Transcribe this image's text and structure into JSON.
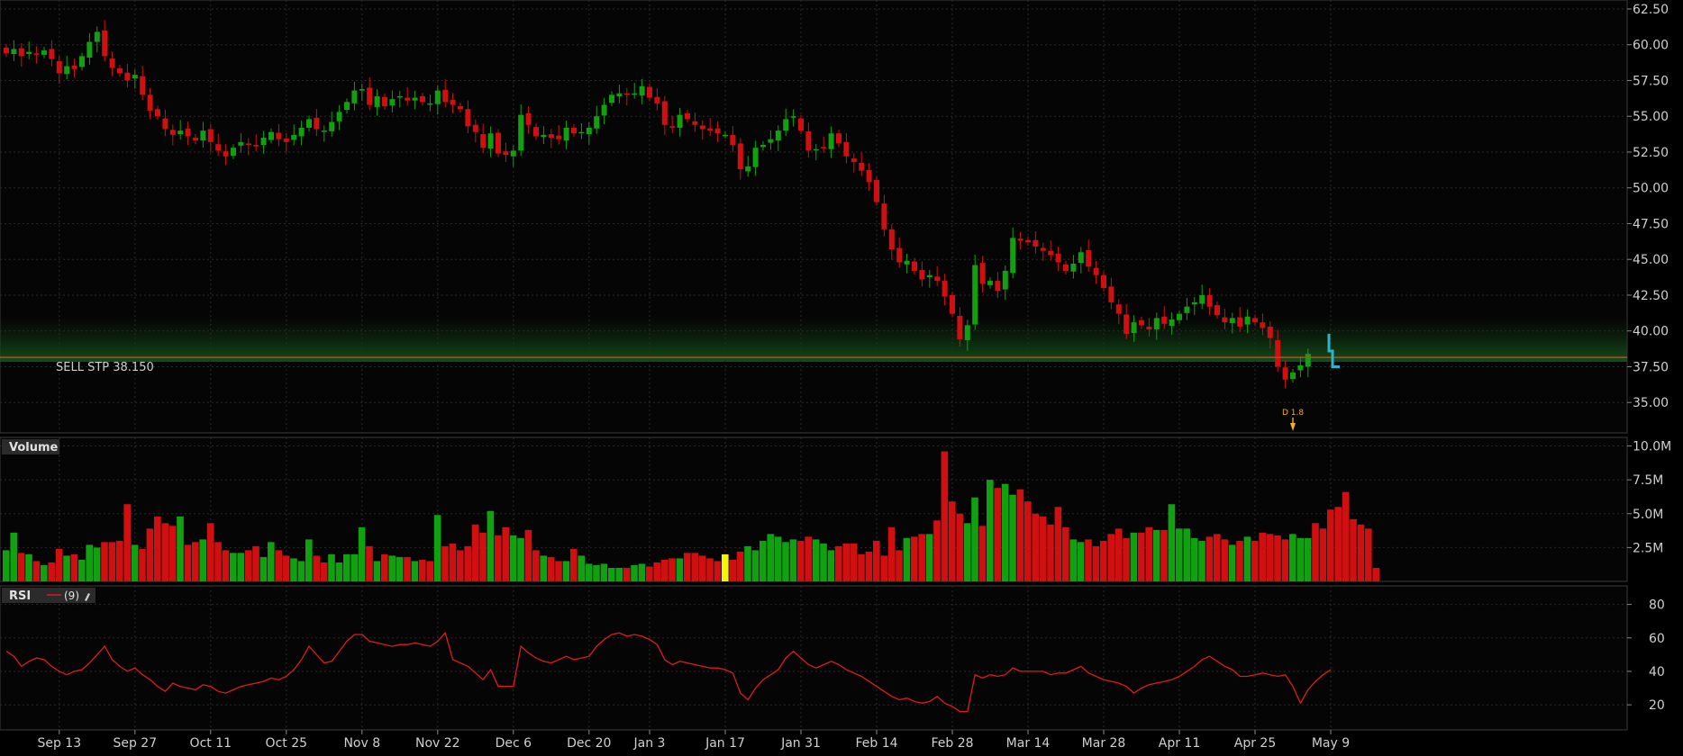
{
  "colors": {
    "background": "#000000",
    "grid": "#2a2a2a",
    "up": "#10a010",
    "down": "#d01010",
    "highlight_volume": "#f5f500",
    "order_line": "#c0481c",
    "rsi_line": "#e01a1a",
    "stop_marker": "#29b6c8",
    "dividend": "#f0b020",
    "text": "#cfcfcf"
  },
  "order": {
    "label": "SELL STP 38.150",
    "price": 38.15
  },
  "dividend_marker": {
    "label": "D 1.8",
    "date_index": 170
  },
  "volume_panel": {
    "title": "Volume",
    "y_labels": [
      "10.0M",
      "7.5M",
      "5.0M",
      "2.5M"
    ]
  },
  "rsi_panel": {
    "title": "RSI",
    "period": "(9)",
    "y_labels": [
      "80",
      "60",
      "40",
      "20"
    ]
  },
  "price_panel": {
    "y_labels": [
      "62.50",
      "60.00",
      "57.50",
      "55.00",
      "52.50",
      "50.00",
      "47.50",
      "45.00",
      "42.50",
      "40.00",
      "37.50",
      "35.00"
    ]
  },
  "chart_data": {
    "type": "candlestick",
    "y_range": [
      33.0,
      63.0
    ],
    "volume_range": [
      0,
      10.5
    ],
    "volume_unit": "M",
    "rsi_range": [
      5,
      90
    ],
    "x_labels": [
      {
        "label": "Sep 13",
        "index": 7
      },
      {
        "label": "Sep 27",
        "index": 17
      },
      {
        "label": "Oct 11",
        "index": 27
      },
      {
        "label": "Oct 25",
        "index": 37
      },
      {
        "label": "Nov 8",
        "index": 47
      },
      {
        "label": "Nov 22",
        "index": 57
      },
      {
        "label": "Dec 6",
        "index": 67
      },
      {
        "label": "Dec 20",
        "index": 77
      },
      {
        "label": "Jan 3",
        "index": 85
      },
      {
        "label": "Jan 17",
        "index": 95
      },
      {
        "label": "Jan 31",
        "index": 105
      },
      {
        "label": "Feb 14",
        "index": 115
      },
      {
        "label": "Feb 28",
        "index": 125
      },
      {
        "label": "Mar 14",
        "index": 135
      },
      {
        "label": "Mar 28",
        "index": 145
      },
      {
        "label": "Apr 11",
        "index": 155
      },
      {
        "label": "Apr 25",
        "index": 165
      },
      {
        "label": "May 9",
        "index": 175
      }
    ],
    "closes": [
      59.4,
      59.7,
      59.2,
      59.5,
      59.3,
      59.6,
      59.0,
      58.0,
      58.5,
      58.3,
      59.2,
      60.2,
      60.9,
      59.2,
      58.4,
      58.0,
      57.5,
      57.9,
      56.5,
      55.4,
      55.0,
      54.1,
      53.7,
      54.0,
      53.6,
      53.3,
      54.0,
      53.2,
      52.6,
      52.2,
      52.8,
      53.2,
      53.0,
      52.9,
      53.5,
      53.9,
      53.4,
      53.2,
      53.7,
      54.2,
      54.8,
      54.1,
      54.0,
      54.6,
      55.3,
      56.0,
      56.8,
      56.9,
      55.8,
      56.4,
      55.7,
      56.2,
      56.4,
      56.1,
      56.3,
      56.0,
      55.9,
      56.8,
      56.0,
      55.8,
      55.5,
      54.3,
      53.9,
      52.8,
      53.8,
      52.4,
      52.3,
      52.6,
      55.1,
      54.4,
      53.6,
      53.7,
      53.5,
      53.4,
      54.2,
      53.8,
      53.9,
      54.2,
      55.0,
      55.8,
      56.5,
      56.6,
      56.5,
      56.6,
      57.1,
      56.3,
      55.9,
      54.4,
      54.2,
      55.1,
      54.8,
      54.4,
      54.1,
      54.0,
      53.8,
      53.7,
      53.0,
      51.3,
      51.5,
      52.8,
      53.0,
      53.4,
      54.0,
      54.8,
      55.0,
      54.0,
      52.6,
      52.7,
      52.8,
      53.8,
      53.1,
      52.2,
      51.8,
      51.2,
      50.4,
      49.0,
      47.1,
      45.7,
      44.8,
      44.9,
      44.2,
      43.6,
      43.9,
      43.5,
      42.4,
      41.2,
      39.4,
      40.4,
      44.6,
      43.3,
      43.5,
      42.8,
      44.2,
      46.5,
      46.3,
      46.2,
      45.9,
      45.6,
      45.3,
      44.8,
      44.2,
      44.7,
      45.5,
      44.5,
      43.9,
      43.0,
      42.0,
      41.2,
      39.8,
      40.6,
      40.4,
      40.1,
      40.9,
      40.5,
      40.8,
      41.2,
      41.7,
      42.0,
      42.5,
      41.7,
      41.1,
      40.6,
      40.9,
      40.3,
      41.0,
      40.6,
      40.2,
      39.5,
      37.5,
      36.6,
      37.1,
      37.6,
      38.4
    ]
  },
  "volumes": [
    2.3,
    3.6,
    2.1,
    2.0,
    1.5,
    1.2,
    1.4,
    2.4,
    1.9,
    2.0,
    1.6,
    2.7,
    2.5,
    2.9,
    2.9,
    3.0,
    5.7,
    2.7,
    2.4,
    3.9,
    4.8,
    4.3,
    4.1,
    4.8,
    2.7,
    2.9,
    3.1,
    4.3,
    2.9,
    2.3,
    2.1,
    2.1,
    2.3,
    2.6,
    1.8,
    2.9,
    2.3,
    1.9,
    1.7,
    1.5,
    3.1,
    1.9,
    1.4,
    2.0,
    1.4,
    2.0,
    2.0,
    4.0,
    2.6,
    1.5,
    2.0,
    1.9,
    1.8,
    1.8,
    1.5,
    1.6,
    1.5,
    4.9,
    2.6,
    2.8,
    2.3,
    2.6,
    4.2,
    3.6,
    5.2,
    3.4,
    4.0,
    3.4,
    3.2,
    3.8,
    2.3,
    1.9,
    1.8,
    1.5,
    1.5,
    2.4,
    1.9,
    1.3,
    1.2,
    1.3,
    1.0,
    1.0,
    1.0,
    1.2,
    1.3,
    1.1,
    1.4,
    1.6,
    1.7,
    1.7,
    2.1,
    2.1,
    1.9,
    1.7,
    1.5,
    2.0,
    1.6,
    2.2,
    2.6,
    2.3,
    3.0,
    3.5,
    3.3,
    2.9,
    3.1,
    3.0,
    3.3,
    3.1,
    2.8,
    2.3,
    2.6,
    2.8,
    2.8,
    2.0,
    2.2,
    3.0,
    1.9,
    4.0,
    2.3,
    3.2,
    3.3,
    3.5,
    3.5,
    4.5,
    9.6,
    5.9,
    5.0,
    4.3,
    6.2,
    4.1,
    7.5,
    6.9,
    7.2,
    6.4,
    6.8,
    5.9,
    5.0,
    4.8,
    4.2,
    5.5,
    4.0,
    3.1,
    2.9,
    3.1,
    2.6,
    3.0,
    3.5,
    3.9,
    3.2,
    3.6,
    3.6,
    4.0,
    3.8,
    3.8,
    5.7,
    3.9,
    3.9,
    3.2,
    3.0,
    3.3,
    3.5,
    3.1,
    2.7,
    3.0,
    3.3,
    3.0,
    3.6,
    3.5,
    3.4,
    3.1,
    3.5,
    3.2,
    3.2,
    4.3,
    3.9,
    5.3,
    5.5,
    6.6,
    4.6,
    4.2,
    3.9,
    1.0
  ],
  "rsi": [
    52,
    49,
    43,
    46,
    48,
    47,
    43,
    40,
    38,
    40,
    41,
    45,
    50,
    55,
    47,
    43,
    40,
    42,
    38,
    35,
    31,
    28,
    33,
    31,
    30,
    29,
    32,
    31,
    28,
    27,
    29,
    31,
    32,
    33,
    34,
    36,
    35,
    37,
    41,
    47,
    55,
    50,
    45,
    46,
    52,
    58,
    62,
    62,
    58,
    57,
    56,
    55,
    56,
    56,
    57,
    56,
    55,
    58,
    63,
    47,
    45,
    43,
    39,
    35,
    41,
    31,
    31,
    31,
    55,
    51,
    48,
    46,
    45,
    47,
    49,
    47,
    48,
    49,
    55,
    59,
    62,
    63,
    61,
    62,
    61,
    59,
    56,
    47,
    44,
    46,
    45,
    44,
    43,
    42,
    42,
    41,
    39,
    27,
    23,
    30,
    35,
    38,
    41,
    48,
    52,
    48,
    44,
    42,
    44,
    46,
    44,
    41,
    39,
    37,
    34,
    31,
    28,
    25,
    23,
    24,
    22,
    21,
    22,
    25,
    21,
    19,
    16,
    16,
    38,
    36,
    38,
    37,
    38,
    42,
    40,
    40,
    40,
    40,
    38,
    39,
    39,
    41,
    43,
    39,
    37,
    35,
    34,
    33,
    31,
    27,
    30,
    32,
    33,
    34,
    35,
    37,
    40,
    43,
    47,
    49,
    46,
    43,
    41,
    37,
    37,
    38,
    39,
    38,
    37,
    38,
    31,
    21,
    29,
    34,
    38,
    41
  ]
}
